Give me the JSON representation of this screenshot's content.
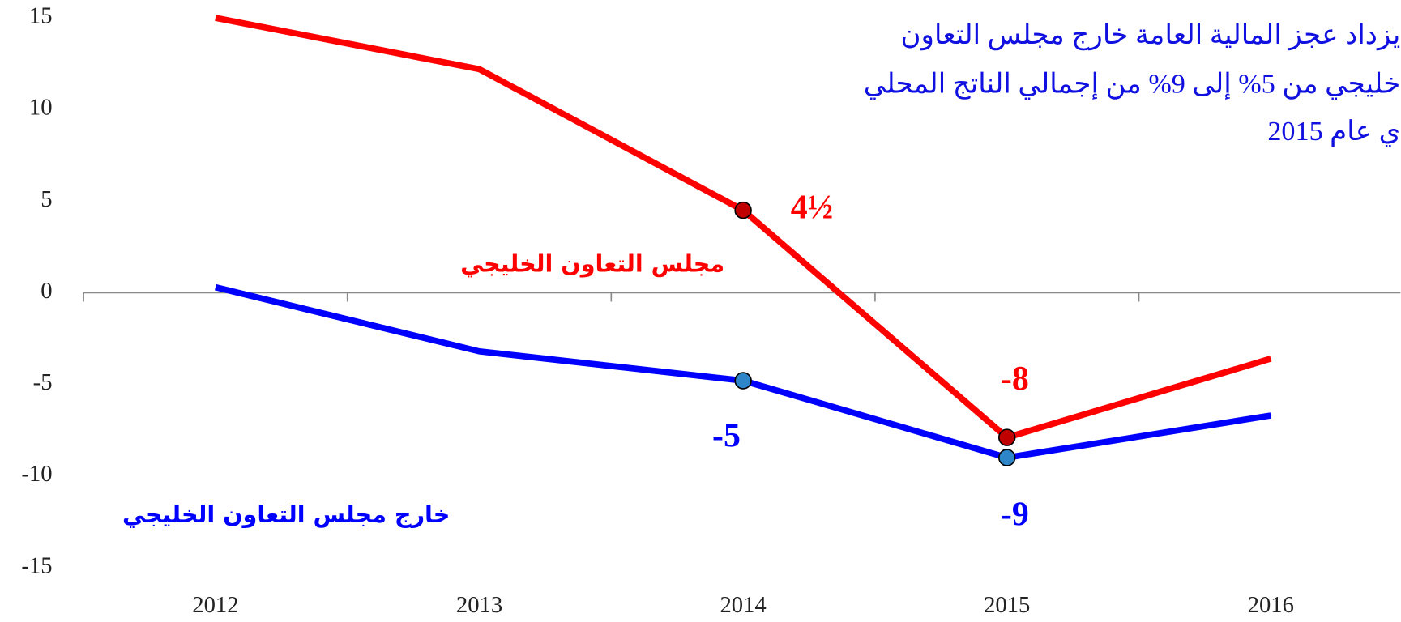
{
  "chart_data": {
    "type": "line",
    "annotation": [
      "يزداد عجز المالية العامة خارج مجلس التعاون",
      "خليجي من 5% إلى 9% من إجمالي الناتج المحلي",
      "ي عام 2015"
    ],
    "categories": [
      "2012",
      "2013",
      "2014",
      "2015",
      "2016"
    ],
    "series": [
      {
        "name": "مجلس التعاون الخليجي",
        "color": "#ff0000",
        "marker_color": "#c00000",
        "values": [
          15,
          12.2,
          4.5,
          -7.9,
          -3.6
        ],
        "value_labels": [
          null,
          null,
          "4½",
          "-8",
          null
        ]
      },
      {
        "name": "خارج مجلس التعاون الخليجي",
        "color": "#0000ff",
        "marker_color": "#2e86c8",
        "values": [
          0.3,
          -3.2,
          -4.8,
          -9,
          -6.7
        ],
        "value_labels": [
          null,
          null,
          "-5",
          "-9",
          null
        ]
      }
    ],
    "ylim": [
      -15,
      15
    ],
    "yticks": [
      15,
      10,
      5,
      0,
      -5,
      -10,
      -15
    ]
  }
}
